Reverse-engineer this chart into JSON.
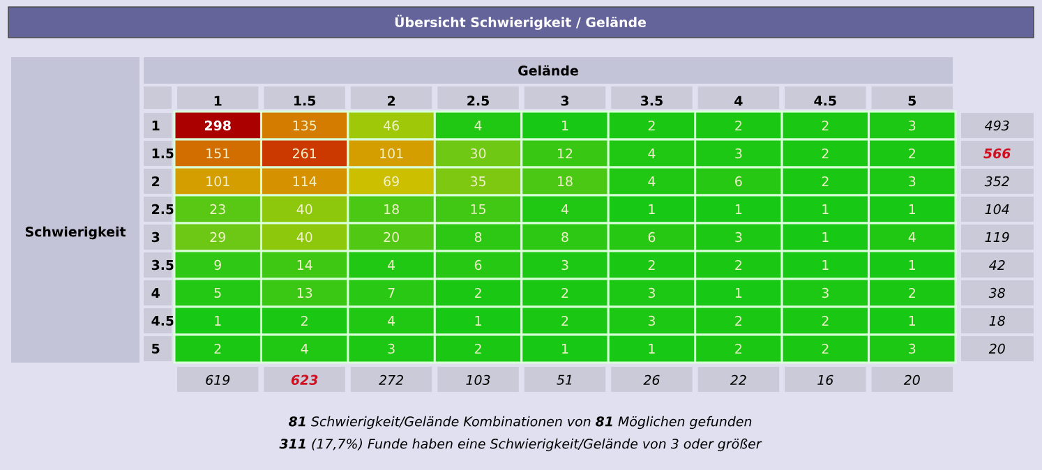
{
  "chart_data": {
    "type": "heatmap",
    "data_labels": true,
    "title": "Übersicht Schwierigkeit / Gelände",
    "xlabel": "Gelände",
    "ylabel": "Schwierigkeit",
    "categories": [
      "1",
      "1.5",
      "2",
      "2.5",
      "3",
      "3.5",
      "4",
      "4.5",
      "5"
    ],
    "y_categories": [
      "1",
      "1.5",
      "2",
      "2.5",
      "3",
      "3.5",
      "4",
      "4.5",
      "5"
    ],
    "y2_categories": [
      "493",
      "566",
      "352",
      "104",
      "119",
      "42",
      "38",
      "18",
      "20"
    ],
    "cells": [
      [
        298,
        135,
        46,
        4,
        1,
        2,
        2,
        2,
        3
      ],
      [
        151,
        261,
        101,
        30,
        12,
        4,
        3,
        2,
        2
      ],
      [
        101,
        114,
        69,
        35,
        18,
        4,
        6,
        2,
        3
      ],
      [
        23,
        40,
        18,
        15,
        4,
        1,
        1,
        1,
        1
      ],
      [
        29,
        40,
        20,
        8,
        8,
        6,
        3,
        1,
        4
      ],
      [
        9,
        14,
        4,
        6,
        3,
        2,
        2,
        1,
        1
      ],
      [
        5,
        13,
        7,
        2,
        2,
        3,
        1,
        3,
        2
      ],
      [
        1,
        2,
        4,
        1,
        2,
        3,
        2,
        2,
        1
      ],
      [
        2,
        4,
        3,
        2,
        1,
        1,
        2,
        2,
        3
      ]
    ],
    "annotations": [
      "619",
      "623",
      "272",
      "103",
      "51",
      "26",
      "22",
      "16",
      "20",
      "**81** Schwierigkeit/Gelände Kombinationen von **81** Möglichen gefunden",
      "**311** (17,7%) Funde haben eine Schwierigkeit/Gelände von 3 oder größer"
    ]
  }
}
